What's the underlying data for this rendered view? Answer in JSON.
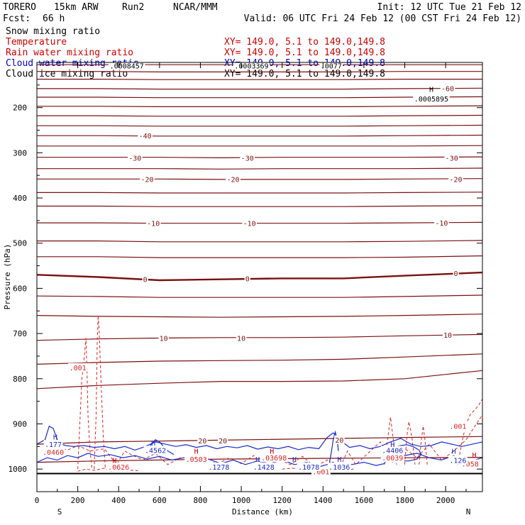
{
  "header": {
    "model": "TORERO",
    "resolution": "15km ARW",
    "run": "Run2",
    "org": "NCAR/MMM",
    "init": "Init: 12 UTC Tue 21 Feb 12",
    "fcst_label": "Fcst:",
    "fcst_value": "66 h",
    "valid": "Valid: 06 UTC Fri 24 Feb 12 (00 CST Fri 24 Feb 12)"
  },
  "fields": [
    {
      "name": "Snow mixing ratio",
      "color": "#000000",
      "xy": ""
    },
    {
      "name": "Temperature",
      "color": "#cc0000",
      "xy": "XY= 149.0,  5.1 to 149.0,149.8"
    },
    {
      "name": "Rain water mixing ratio",
      "color": "#cc0000",
      "xy": "XY= 149.0,  5.1 to 149.0,149.8"
    },
    {
      "name": "Cloud water mixing ratio",
      "color": "#0000cc",
      "xy": "XY= 149.0,  5.1 to 149.0,149.8"
    },
    {
      "name": "Cloud ice mixing ratio",
      "color": "#000000",
      "xy": "XY= 149.0,  5.1 to 149.0,149.8"
    }
  ],
  "colors": {
    "temperature": "#7a1010",
    "rain": "#dd2222",
    "cloud_water": "#1a2acc",
    "ice": "#000000"
  },
  "chart_data": {
    "type": "line",
    "title": "",
    "xlabel": "Distance (km)",
    "ylabel": "Pressure (hPa)",
    "xlim": [
      0,
      2180
    ],
    "ylim": [
      1050,
      100
    ],
    "x_ticks": [
      0,
      200,
      400,
      600,
      800,
      1000,
      1200,
      1400,
      1600,
      1800,
      2000
    ],
    "y_ticks": [
      200,
      300,
      400,
      500,
      600,
      700,
      800,
      900,
      1000
    ],
    "x_left_label": "S",
    "x_right_label": "N",
    "ground_pressure": 1010,
    "isotherm_x": [
      0,
      300,
      600,
      900,
      1200,
      1500,
      1800,
      2180
    ],
    "isotherms": [
      {
        "label": "",
        "p": [
          105,
          105,
          105,
          105,
          105,
          105,
          105,
          105
        ]
      },
      {
        "label": "",
        "p": [
          120,
          120,
          121,
          121,
          121,
          121,
          120,
          120
        ]
      },
      {
        "label": "",
        "p": [
          137,
          137,
          138,
          138,
          138,
          138,
          137,
          137
        ]
      },
      {
        "label": "-60",
        "p": [
          158,
          158,
          159,
          159,
          159,
          159,
          158,
          157
        ]
      },
      {
        "label": "",
        "p": [
          177,
          177,
          178,
          178,
          178,
          178,
          177,
          176
        ]
      },
      {
        "label": "",
        "p": [
          197,
          197,
          198,
          198,
          198,
          198,
          197,
          196
        ]
      },
      {
        "label": "",
        "p": [
          218,
          218,
          219,
          219,
          219,
          219,
          218,
          217
        ]
      },
      {
        "label": "",
        "p": [
          240,
          240,
          241,
          241,
          241,
          241,
          240,
          239
        ]
      },
      {
        "label": "-40",
        "p": [
          262,
          262,
          263,
          263,
          263,
          263,
          262,
          261
        ]
      },
      {
        "label": "",
        "p": [
          285,
          285,
          285,
          285,
          285,
          285,
          285,
          284
        ]
      },
      {
        "label": "-30",
        "p": [
          310,
          310,
          310,
          311,
          310,
          310,
          310,
          309
        ]
      },
      {
        "label": "",
        "p": [
          335,
          335,
          335,
          336,
          335,
          335,
          335,
          334
        ]
      },
      {
        "label": "-20",
        "p": [
          358,
          358,
          358,
          359,
          359,
          359,
          358,
          357
        ]
      },
      {
        "label": "",
        "p": [
          388,
          388,
          389,
          389,
          389,
          389,
          388,
          387
        ]
      },
      {
        "label": "",
        "p": [
          418,
          418,
          419,
          419,
          419,
          419,
          418,
          417
        ]
      },
      {
        "label": "-10",
        "p": [
          455,
          455,
          456,
          456,
          456,
          456,
          455,
          454
        ]
      },
      {
        "label": "",
        "p": [
          495,
          495,
          497,
          497,
          497,
          497,
          496,
          494
        ]
      },
      {
        "label": "",
        "p": [
          530,
          530,
          532,
          532,
          532,
          532,
          531,
          528
        ]
      },
      {
        "label": "0",
        "p": [
          570,
          575,
          582,
          580,
          578,
          578,
          572,
          565
        ]
      },
      {
        "label": "",
        "p": [
          617,
          618,
          620,
          620,
          620,
          620,
          618,
          615
        ]
      },
      {
        "label": "",
        "p": [
          660,
          662,
          663,
          664,
          663,
          662,
          660,
          657
        ]
      },
      {
        "label": "10",
        "p": [
          715,
          712,
          710,
          709,
          709,
          708,
          705,
          702
        ]
      },
      {
        "label": "",
        "p": [
          768,
          764,
          761,
          760,
          759,
          757,
          752,
          745
        ]
      },
      {
        "label": "",
        "p": [
          822,
          815,
          810,
          806,
          806,
          805,
          800,
          782
        ]
      },
      {
        "label": "20",
        "p": [
          945,
          940,
          938,
          936,
          934,
          932,
          930,
          928
        ]
      },
      {
        "label": "",
        "p": [
          985,
          982,
          980,
          978,
          977,
          976,
          975,
          974
        ]
      }
    ],
    "temperature_labels": [
      {
        "text": "-60",
        "x": 2010,
        "p": 157
      },
      {
        "text": "-40",
        "x": 530,
        "p": 262
      },
      {
        "text": "-30",
        "x": 480,
        "p": 311
      },
      {
        "text": "-30",
        "x": 1030,
        "p": 311
      },
      {
        "text": "-30",
        "x": 2030,
        "p": 311
      },
      {
        "text": "-20",
        "x": 540,
        "p": 358
      },
      {
        "text": "-20",
        "x": 960,
        "p": 358
      },
      {
        "text": "-20",
        "x": 2050,
        "p": 358
      },
      {
        "text": "-10",
        "x": 570,
        "p": 456
      },
      {
        "text": "-10",
        "x": 1040,
        "p": 456
      },
      {
        "text": "-10",
        "x": 1980,
        "p": 455
      },
      {
        "text": "0",
        "x": 530,
        "p": 580
      },
      {
        "text": "0",
        "x": 1030,
        "p": 578
      },
      {
        "text": "0",
        "x": 2050,
        "p": 566
      },
      {
        "text": "10",
        "x": 620,
        "p": 710
      },
      {
        "text": "10",
        "x": 1000,
        "p": 710
      },
      {
        "text": "10",
        "x": 2010,
        "p": 703
      },
      {
        "text": "20",
        "x": 810,
        "p": 937
      },
      {
        "text": "20",
        "x": 910,
        "p": 937
      },
      {
        "text": "20",
        "x": 1480,
        "p": 935
      }
    ],
    "rain_contours": [
      {
        "x": [
          200,
          210,
          220,
          230,
          240,
          245,
          250,
          260,
          270
        ],
        "p": [
          1000,
          900,
          800,
          760,
          710,
          780,
          880,
          960,
          1000
        ]
      },
      {
        "x": [
          280,
          290,
          295,
          300,
          305,
          315,
          325,
          335
        ],
        "p": [
          1000,
          880,
          720,
          660,
          700,
          820,
          930,
          1000
        ]
      },
      {
        "x": [
          60,
          100,
          150,
          200,
          260,
          330,
          390,
          430,
          470,
          520,
          580,
          640,
          700,
          760,
          820,
          880,
          940,
          1000,
          1060,
          1120,
          1180,
          1240,
          1300,
          1360,
          1420,
          1480,
          1520,
          1560,
          1620,
          1680,
          1740,
          1800,
          1860,
          1920,
          1980,
          2040,
          2100,
          2150,
          2180
        ],
        "p": [
          955,
          950,
          958,
          948,
          960,
          955,
          990,
          960,
          970,
          980,
          965,
          990,
          975,
          985,
          968,
          990,
          975,
          988,
          970,
          995,
          978,
          990,
          972,
          995,
          980,
          1000,
          960,
          990,
          965,
          940,
          985,
          955,
          975,
          945,
          980,
          960,
          935,
          900,
          880
        ]
      },
      {
        "x": [
          1700,
          1720,
          1730,
          1740,
          1760
        ],
        "p": [
          990,
          920,
          885,
          920,
          990
        ]
      },
      {
        "x": [
          1800,
          1810,
          1820,
          1835,
          1850
        ],
        "p": [
          990,
          930,
          895,
          930,
          990
        ]
      },
      {
        "x": [
          1870,
          1880,
          1890,
          1900,
          1910
        ],
        "p": [
          990,
          940,
          905,
          940,
          990
        ]
      },
      {
        "x": [
          2060,
          2080,
          2100,
          2120,
          2140,
          2160,
          2180
        ],
        "p": [
          990,
          940,
          900,
          880,
          870,
          860,
          845
        ]
      },
      {
        "x": [
          200,
          240,
          280,
          330,
          360,
          400,
          440,
          480,
          500
        ],
        "p": [
          1005,
          1000,
          1003,
          998,
          1005,
          1000,
          1004,
          1002,
          1005
        ]
      },
      {
        "x": [
          1200,
          1250,
          1300,
          1350,
          1400,
          1450,
          1500,
          1550
        ],
        "p": [
          1000,
          998,
          1002,
          998,
          1003,
          999,
          1002,
          1000
        ]
      }
    ],
    "cloud_water_contours": [
      {
        "x": [
          0,
          40,
          60,
          80,
          100,
          120,
          140,
          180,
          230,
          280,
          330,
          380,
          430,
          480,
          530,
          580,
          630,
          680,
          730,
          780,
          830,
          880,
          930,
          980,
          1030,
          1080,
          1130,
          1180,
          1230,
          1280,
          1330,
          1380,
          1420,
          1450,
          1480,
          1530,
          1580,
          1630,
          1680,
          1730,
          1780,
          1830,
          1880,
          1930,
          1980,
          2030,
          2080,
          2130,
          2180
        ],
        "p": [
          945,
          935,
          905,
          910,
          935,
          945,
          948,
          950,
          948,
          952,
          950,
          955,
          950,
          958,
          950,
          940,
          945,
          950,
          946,
          952,
          948,
          955,
          950,
          953,
          948,
          956,
          951,
          955,
          950,
          957,
          952,
          955,
          930,
          920,
          935,
          952,
          948,
          955,
          950,
          940,
          932,
          945,
          950,
          948,
          940,
          945,
          950,
          945,
          940
        ]
      },
      {
        "x": [
          0,
          50,
          100,
          150,
          200,
          250,
          300,
          360,
          420,
          480,
          540,
          600,
          660,
          720,
          780,
          840,
          900,
          960,
          1020,
          1080,
          1140,
          1200,
          1260,
          1320,
          1380,
          1420,
          1450,
          1480,
          1540,
          1600,
          1660,
          1700,
          1740,
          1800,
          1860,
          1920,
          1980,
          2040,
          2100,
          2180
        ],
        "p": [
          985,
          975,
          980,
          970,
          975,
          965,
          972,
          968,
          975,
          970,
          978,
          972,
          980,
          975,
          985,
          978,
          988,
          980,
          990,
          982,
          988,
          980,
          990,
          985,
          995,
          990,
          985,
          995,
          990,
          985,
          992,
          988,
          960,
          970,
          965,
          975,
          980,
          970,
          985,
          975
        ]
      },
      {
        "x": [
          540,
          560,
          580,
          600,
          620,
          640,
          660,
          670
        ],
        "p": [
          960,
          945,
          935,
          940,
          950,
          960,
          965,
          968
        ]
      },
      {
        "x": [
          1700,
          1740,
          1780,
          1810,
          1840,
          1870,
          1880,
          1860,
          1820,
          1780,
          1740,
          1710,
          1700
        ],
        "p": [
          962,
          952,
          948,
          946,
          950,
          958,
          968,
          978,
          982,
          982,
          980,
          972,
          962
        ]
      },
      {
        "x": [
          1430,
          1440,
          1450,
          1460,
          1470,
          1475
        ],
        "p": [
          990,
          965,
          935,
          918,
          935,
          960
        ]
      }
    ],
    "cloud_water_labels": [
      {
        "text": ".177",
        "x": 80,
        "p": 945
      },
      {
        "text": ".4562",
        "x": 580,
        "p": 958
      },
      {
        "text": ".1278",
        "x": 890,
        "p": 995
      },
      {
        "text": ".1428",
        "x": 1110,
        "p": 995
      },
      {
        "text": ".1078",
        "x": 1330,
        "p": 995
      },
      {
        "text": ".1036",
        "x": 1480,
        "p": 995
      },
      {
        "text": ".4406",
        "x": 1740,
        "p": 958
      },
      {
        "text": ".126",
        "x": 2060,
        "p": 980
      }
    ],
    "rain_labels": [
      {
        "text": ".001",
        "x": 200,
        "p": 775
      },
      {
        "text": ".0460",
        "x": 80,
        "p": 962
      },
      {
        "text": ".0626",
        "x": 400,
        "p": 995
      },
      {
        "text": ".0503",
        "x": 780,
        "p": 978
      },
      {
        "text": ".03698",
        "x": 1160,
        "p": 975
      },
      {
        "text": ".0039",
        "x": 1740,
        "p": 975
      },
      {
        "text": ".001",
        "x": 2060,
        "p": 905
      },
      {
        "text": ".001",
        "x": 1390,
        "p": 1005
      },
      {
        "text": ".058",
        "x": 2120,
        "p": 988
      }
    ],
    "ice_labels": [
      {
        "text": ".0008457",
        "x": 440,
        "p": 107
      },
      {
        "text": ".0003369",
        "x": 1050,
        "p": 107
      },
      {
        "text": ".0077",
        "x": 1440,
        "p": 107
      },
      {
        "text": ".0005895",
        "x": 1930,
        "p": 180
      }
    ],
    "high_markers": [
      {
        "text": "H",
        "x": 400,
        "p": 100,
        "color": "#000000"
      },
      {
        "text": "H",
        "x": 1930,
        "p": 159,
        "color": "#000000"
      },
      {
        "text": "H",
        "x": 90,
        "p": 928,
        "color": "#1a2acc"
      },
      {
        "text": "H",
        "x": 570,
        "p": 942,
        "color": "#1a2acc"
      },
      {
        "text": "H",
        "x": 780,
        "p": 960,
        "color": "#cc0000"
      },
      {
        "text": "H",
        "x": 1080,
        "p": 978,
        "color": "#1a2acc"
      },
      {
        "text": "H",
        "x": 1150,
        "p": 960,
        "color": "#cc0000"
      },
      {
        "text": "H",
        "x": 1260,
        "p": 978,
        "color": "#1a2acc"
      },
      {
        "text": "H",
        "x": 1480,
        "p": 978,
        "color": "#1a2acc"
      },
      {
        "text": "H",
        "x": 1740,
        "p": 945,
        "color": "#1a2acc"
      },
      {
        "text": "H",
        "x": 2040,
        "p": 960,
        "color": "#1a2acc"
      },
      {
        "text": "H",
        "x": 2140,
        "p": 968,
        "color": "#cc0000"
      },
      {
        "text": "H",
        "x": 380,
        "p": 980,
        "color": "#cc0000"
      }
    ]
  }
}
